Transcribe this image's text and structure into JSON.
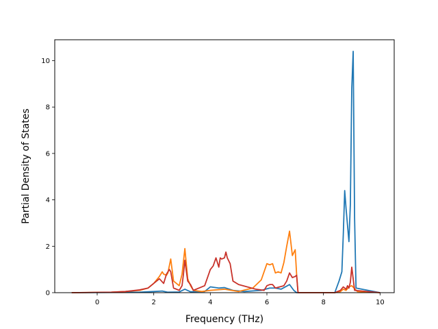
{
  "chart_data": {
    "type": "line",
    "title": "",
    "xlabel": "Frequency (THz)",
    "ylabel": "Partial Density of States",
    "xlim": [
      -1.5,
      10.5
    ],
    "ylim": [
      0,
      10.9
    ],
    "xticks": [
      0,
      2,
      4,
      6,
      8,
      10
    ],
    "yticks": [
      0,
      2,
      4,
      6,
      8,
      10
    ],
    "grid": false,
    "legend": "none",
    "series": [
      {
        "color": "#1f77b4",
        "x": [
          -0.9,
          1.5,
          2.0,
          2.3,
          2.5,
          2.9,
          3.1,
          3.3,
          3.8,
          4.0,
          4.3,
          4.5,
          4.8,
          5.2,
          5.8,
          6.1,
          6.3,
          6.5,
          6.8,
          6.95,
          7.05,
          8.4,
          8.55,
          8.65,
          8.7,
          8.75,
          8.8,
          8.9,
          8.95,
          9.0,
          9.05,
          9.1,
          9.15,
          10.0
        ],
        "y": [
          0,
          0.02,
          0.05,
          0.07,
          0.02,
          0.03,
          0.15,
          0.04,
          0.05,
          0.25,
          0.2,
          0.22,
          0.1,
          0.05,
          0.1,
          0.2,
          0.2,
          0.15,
          0.35,
          0.1,
          0,
          0,
          0.5,
          0.9,
          2.5,
          4.4,
          3.6,
          2.2,
          3.8,
          8.8,
          10.4,
          3.2,
          0.2,
          0
        ]
      },
      {
        "color": "#ff7f0e",
        "x": [
          -0.9,
          0.5,
          1.0,
          1.5,
          1.8,
          2.0,
          2.2,
          2.3,
          2.35,
          2.45,
          2.5,
          2.6,
          2.7,
          2.9,
          3.0,
          3.1,
          3.2,
          3.3,
          3.4,
          3.7,
          4.0,
          4.5,
          5.0,
          5.5,
          5.8,
          6.0,
          6.1,
          6.2,
          6.3,
          6.4,
          6.5,
          6.6,
          6.7,
          6.8,
          6.9,
          7.0,
          7.05,
          7.1,
          8.4,
          8.6,
          8.7,
          8.8,
          8.9,
          9.0,
          9.2,
          10.0
        ],
        "y": [
          0,
          0.02,
          0.05,
          0.1,
          0.2,
          0.4,
          0.7,
          0.9,
          0.8,
          0.75,
          0.85,
          1.45,
          0.5,
          0.3,
          0.8,
          1.9,
          0.6,
          0.3,
          0.1,
          0.05,
          0.1,
          0.15,
          0.05,
          0.2,
          0.55,
          1.25,
          1.2,
          1.25,
          0.85,
          0.9,
          0.85,
          1.3,
          2.0,
          2.65,
          1.6,
          1.85,
          0.8,
          0,
          0,
          0.05,
          0.15,
          0.1,
          0.25,
          0.3,
          0.05,
          0
        ]
      },
      {
        "color": "#c8322a",
        "x": [
          -0.9,
          0.5,
          1.0,
          1.5,
          1.8,
          2.0,
          2.2,
          2.35,
          2.45,
          2.5,
          2.55,
          2.6,
          2.7,
          2.9,
          3.0,
          3.05,
          3.1,
          3.2,
          3.3,
          3.4,
          3.8,
          4.0,
          4.1,
          4.2,
          4.3,
          4.35,
          4.4,
          4.5,
          4.55,
          4.6,
          4.7,
          4.8,
          5.0,
          5.3,
          5.6,
          5.9,
          6.0,
          6.1,
          6.2,
          6.3,
          6.6,
          6.7,
          6.8,
          6.9,
          7.0,
          7.05,
          7.1,
          8.4,
          8.6,
          8.7,
          8.8,
          8.85,
          8.9,
          8.95,
          9.0,
          9.1,
          10.0
        ],
        "y": [
          0,
          0.02,
          0.05,
          0.12,
          0.2,
          0.4,
          0.6,
          0.4,
          0.8,
          0.9,
          1.0,
          0.9,
          0.2,
          0.1,
          0.3,
          0.8,
          1.4,
          0.5,
          0.35,
          0.1,
          0.3,
          1.0,
          1.15,
          1.5,
          1.1,
          1.5,
          1.45,
          1.5,
          1.75,
          1.5,
          1.25,
          0.5,
          0.35,
          0.25,
          0.15,
          0.1,
          0.3,
          0.35,
          0.35,
          0.2,
          0.3,
          0.5,
          0.85,
          0.65,
          0.7,
          0.75,
          0,
          0,
          0.1,
          0.25,
          0.15,
          0.3,
          0.2,
          0.45,
          1.1,
          0.1,
          0
        ]
      }
    ]
  }
}
